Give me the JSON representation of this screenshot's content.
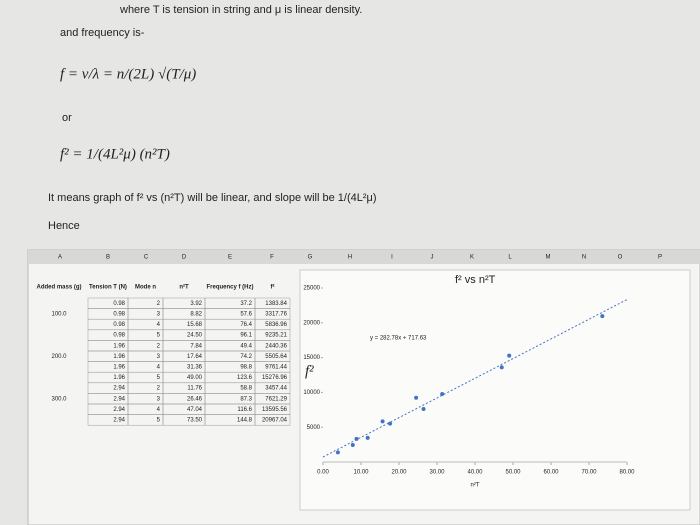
{
  "text": {
    "line1": "where T is tension in string and μ is linear density.",
    "line2": "and frequency is-",
    "formula1": "f = v/λ = n/(2L) √(T/μ)",
    "or": "or",
    "formula2": "f² = 1/(4L²μ) (n²T)",
    "line3": "It means graph of f² vs (n²T) will be linear, and slope will be 1/(4L²μ)",
    "hence": "Hence"
  },
  "sheet": {
    "columns": [
      "A",
      "B",
      "C",
      "D",
      "E",
      "F",
      "G",
      "H",
      "I",
      "J",
      "K",
      "L",
      "M",
      "N",
      "O",
      "P"
    ],
    "headers": [
      "Added mass (g)",
      "Tension T (N)",
      "Mode n",
      "n²T",
      "Frequency f (Hz)",
      "f²"
    ],
    "masses": [
      "100.0",
      "200.0",
      "300.0"
    ],
    "rows": [
      [
        "0.98",
        "2",
        "3.92",
        "37.2",
        "1383.84"
      ],
      [
        "0.98",
        "3",
        "8.82",
        "57.6",
        "3317.76"
      ],
      [
        "0.98",
        "4",
        "15.68",
        "76.4",
        "5836.96"
      ],
      [
        "0.98",
        "5",
        "24.50",
        "96.1",
        "9235.21"
      ],
      [
        "1.96",
        "2",
        "7.84",
        "49.4",
        "2440.36"
      ],
      [
        "1.96",
        "3",
        "17.64",
        "74.2",
        "5505.64"
      ],
      [
        "1.96",
        "4",
        "31.36",
        "98.8",
        "9761.44"
      ],
      [
        "1.96",
        "5",
        "49.00",
        "123.6",
        "15276.96"
      ],
      [
        "2.94",
        "2",
        "11.76",
        "58.8",
        "3457.44"
      ],
      [
        "2.94",
        "3",
        "26.46",
        "87.3",
        "7621.29"
      ],
      [
        "2.94",
        "4",
        "47.04",
        "116.6",
        "13595.56"
      ],
      [
        "2.94",
        "5",
        "73.50",
        "144.8",
        "20967.04"
      ]
    ]
  },
  "chart_data": {
    "type": "scatter",
    "title": "f² vs n²T",
    "x_label": "n²T",
    "y_label": "f²",
    "x": [
      3.92,
      8.82,
      15.68,
      24.5,
      7.84,
      17.64,
      31.36,
      49,
      11.76,
      26.46,
      47.04,
      73.5
    ],
    "values": [
      1383.84,
      3317.76,
      5836.96,
      9235.21,
      2440.36,
      5505.64,
      9761.44,
      15276.96,
      3457.44,
      7621.29,
      13595.56,
      20967.04
    ],
    "color": "#4472c4",
    "trendline": {
      "label": "y = 282.78x + 717.63",
      "slope": 282.78,
      "intercept": 717.63
    },
    "xlim": [
      0,
      80
    ],
    "ylim": [
      0,
      25000
    ],
    "xticks": [
      {
        "value": 0,
        "label": "0.00"
      },
      {
        "value": 10,
        "label": "10.00"
      },
      {
        "value": 20,
        "label": "20.00"
      },
      {
        "value": 30,
        "label": "30.00"
      },
      {
        "value": 40,
        "label": "40.00"
      },
      {
        "value": 50,
        "label": "50.00"
      },
      {
        "value": 60,
        "label": "60.00"
      },
      {
        "value": 70,
        "label": "70.00"
      },
      {
        "value": 80,
        "label": "80.00"
      }
    ],
    "yticks": [
      5000,
      10000,
      15000,
      20000,
      25000
    ]
  }
}
